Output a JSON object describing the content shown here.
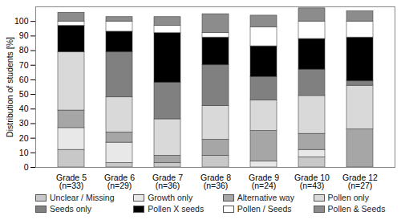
{
  "chart_data": {
    "type": "bar",
    "stacked": true,
    "y_label": "Distribution of students [%]",
    "categories": [
      "Grade 5\n(n=33)",
      "Grade 6\n(n=29)",
      "Grade 7\n(n=36)",
      "Grade 8\n(n=36)",
      "Grade 9\n(n=24)",
      "Grade 10\n(n=43)",
      "Grade 12\n(n=27)"
    ],
    "series": [
      {
        "name": "Unclear / Missing",
        "color": "#c8c8c8",
        "values": [
          12,
          3,
          3,
          8,
          0,
          7,
          0
        ]
      },
      {
        "name": "Growth only",
        "color": "#e8e8e8",
        "values": [
          15,
          14,
          0,
          0,
          4,
          5,
          0
        ]
      },
      {
        "name": "Alternative way",
        "color": "#a6a6a6",
        "values": [
          12,
          7,
          5,
          11,
          21,
          11,
          26
        ]
      },
      {
        "name": "Pollen only",
        "color": "#d9d9d9",
        "values": [
          40,
          24,
          25,
          23,
          21,
          26,
          30
        ]
      },
      {
        "name": "Seeds only",
        "color": "#808080",
        "values": [
          0,
          31,
          25,
          28,
          16,
          18,
          3
        ]
      },
      {
        "name": "Pollen X seeds",
        "color": "#000000",
        "values": [
          18,
          14,
          34,
          19,
          21,
          21,
          30
        ]
      },
      {
        "name": "Pollen / Seeds",
        "color": "#ffffff",
        "values": [
          3,
          7,
          5,
          3,
          13,
          12,
          11
        ]
      },
      {
        "name": "Pollen & Seeds",
        "color": "#8c8c8c",
        "values": [
          6,
          3,
          6,
          13,
          8,
          9,
          7
        ]
      }
    ],
    "ylim": [
      0,
      110
    ],
    "yticks": [
      0,
      10,
      20,
      30,
      40,
      50,
      60,
      70,
      80,
      90,
      100
    ],
    "legend": "bottom"
  }
}
